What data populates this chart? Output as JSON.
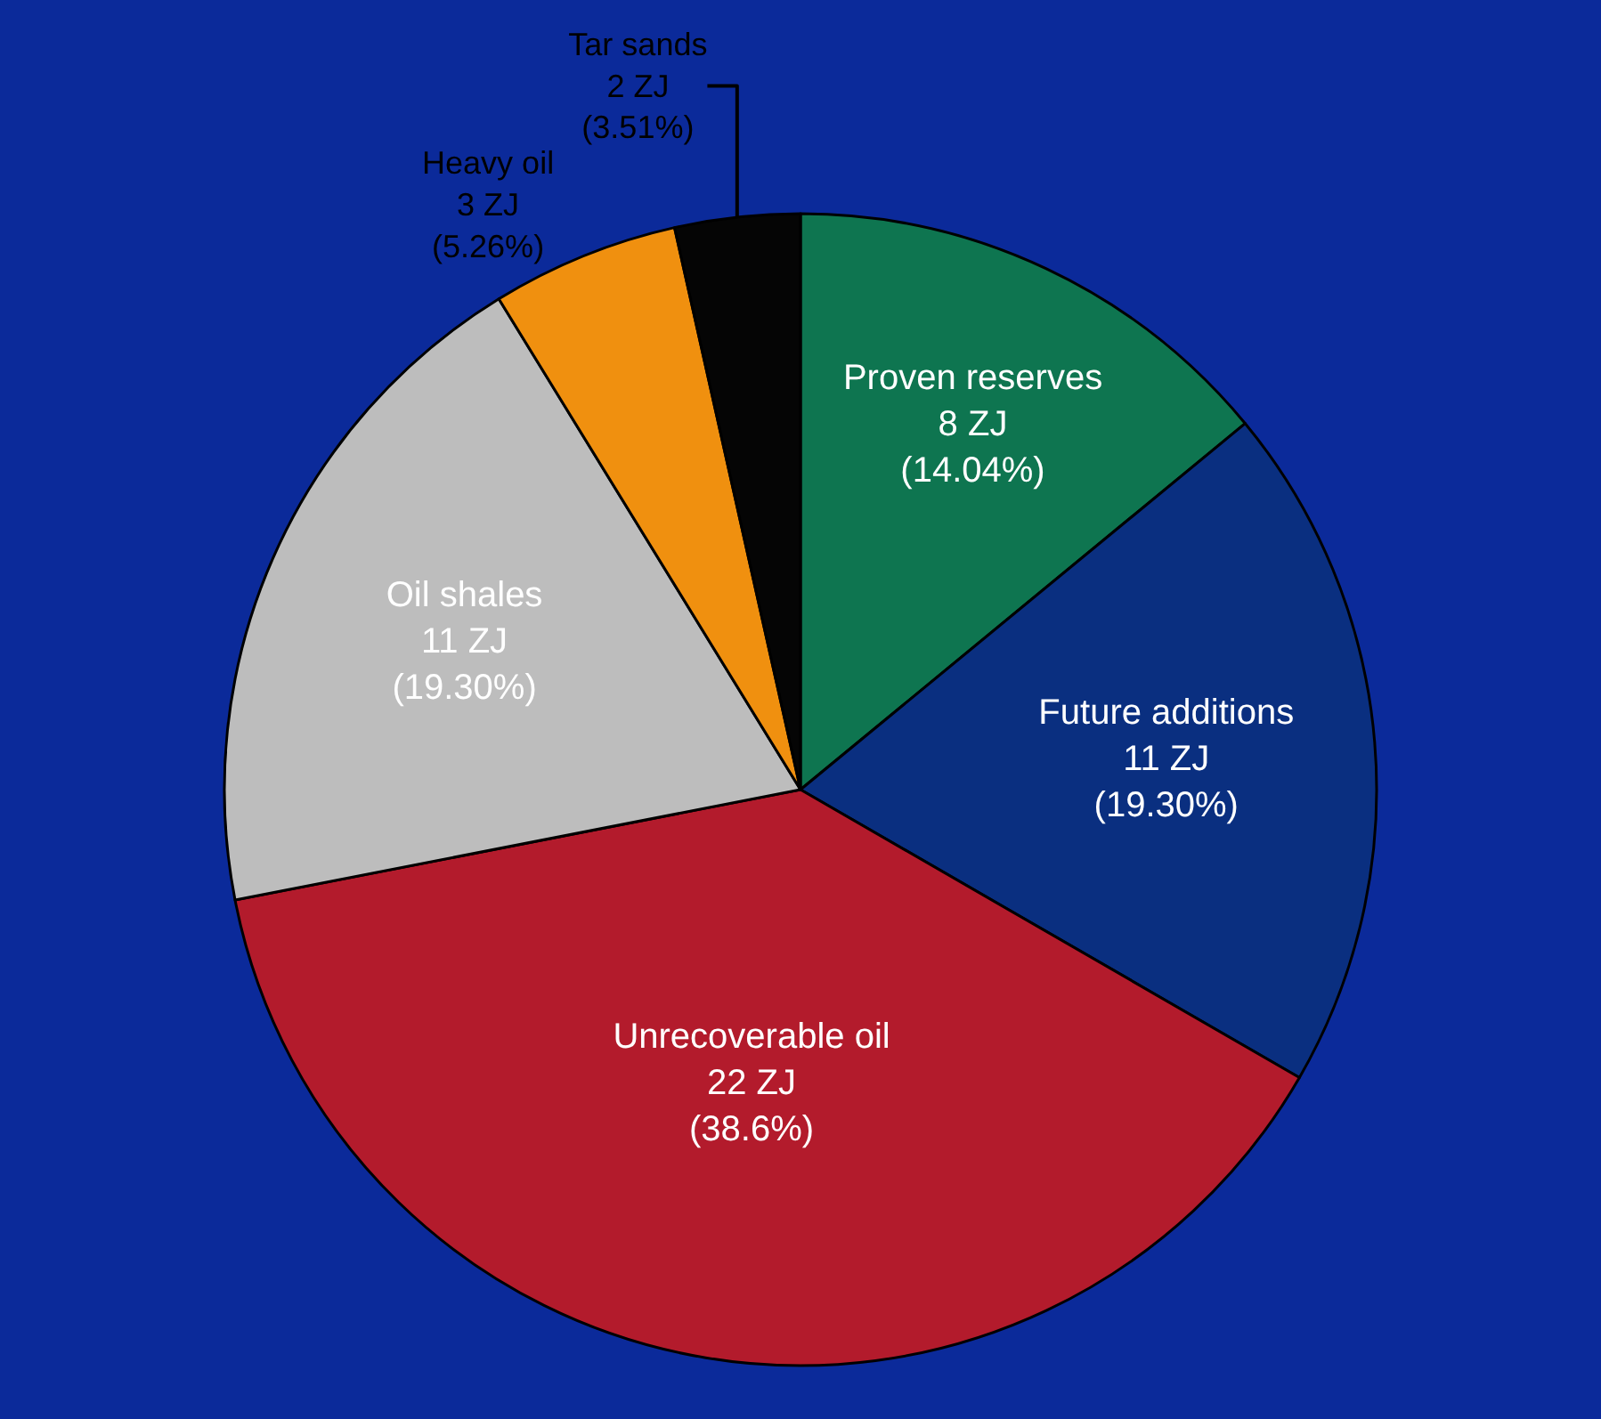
{
  "chart_data": {
    "type": "pie",
    "categories": [
      "Proven reserves",
      "Future additions",
      "Unrecoverable oil",
      "Oil shales",
      "Heavy oil",
      "Tar sands"
    ],
    "values": [
      8,
      11,
      22,
      11,
      3,
      2
    ],
    "colors": [
      "#0e7550",
      "#0a2f80",
      "#b31b2c",
      "#bdbdbd",
      "#f0900f",
      "#050505"
    ],
    "value_labels": [
      "8 ZJ\n(14.04%)",
      "11 ZJ\n(19.30%)",
      "22 ZJ\n(38.6%)",
      "11 ZJ\n(19.30%)",
      "3 ZJ\n(5.26%)",
      "2 ZJ\n(3.51%)"
    ]
  }
}
